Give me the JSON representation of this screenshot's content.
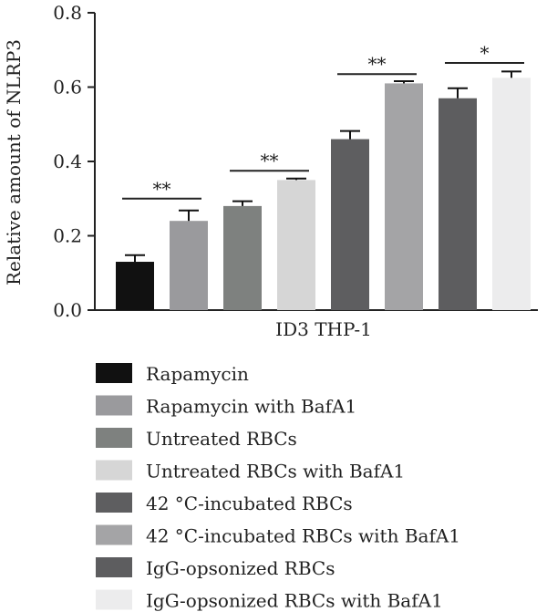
{
  "chart_data": {
    "type": "bar",
    "ylabel": "Relative amount of NLRP3",
    "xlabel": "ID3 THP-1",
    "ylim": [
      0,
      0.8
    ],
    "yticks": [
      "0.0",
      "0.2",
      "0.4",
      "0.6",
      "0.8"
    ],
    "series": [
      {
        "name": "Rapamycin",
        "value": 0.13,
        "error": 0.018,
        "color": "#111111"
      },
      {
        "name": "Rapamycin with BafA1",
        "value": 0.24,
        "error": 0.028,
        "color": "#9a9a9d"
      },
      {
        "name": "Untreated RBCs",
        "value": 0.28,
        "error": 0.013,
        "color": "#7e817f"
      },
      {
        "name": "Untreated RBCs with BafA1",
        "value": 0.35,
        "error": 0.004,
        "color": "#d6d6d6"
      },
      {
        "name": "42 °C-incubated RBCs",
        "value": 0.46,
        "error": 0.022,
        "color": "#5e5e60"
      },
      {
        "name": "42 °C-incubated RBCs with BafA1",
        "value": 0.61,
        "error": 0.006,
        "color": "#a4a4a6"
      },
      {
        "name": "IgG-opsonized RBCs",
        "value": 0.57,
        "error": 0.027,
        "color": "#5d5d5f"
      },
      {
        "name": "IgG-opsonized RBCs with BafA1",
        "value": 0.625,
        "error": 0.017,
        "color": "#ececed"
      }
    ],
    "significance": [
      {
        "pair": [
          0,
          1
        ],
        "label": "**",
        "y": 0.3
      },
      {
        "pair": [
          2,
          3
        ],
        "label": "**",
        "y": 0.375
      },
      {
        "pair": [
          4,
          5
        ],
        "label": "**",
        "y": 0.635
      },
      {
        "pair": [
          6,
          7
        ],
        "label": "*",
        "y": 0.665
      }
    ],
    "grid": false,
    "legend_position": "bottom"
  }
}
